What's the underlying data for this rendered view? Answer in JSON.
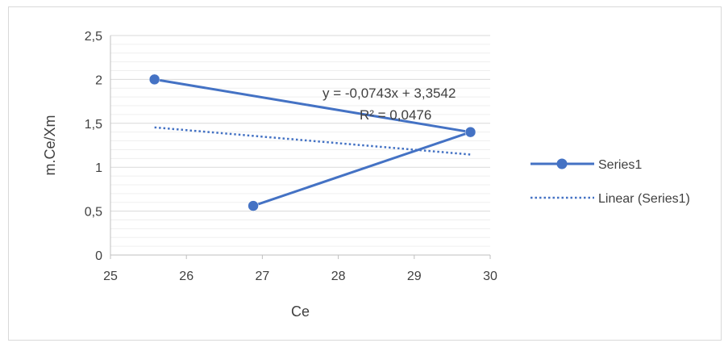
{
  "chart_data": {
    "type": "scatter",
    "title": "",
    "xlabel": "Ce",
    "ylabel": "m.Ce/Xm",
    "xlim": [
      25,
      30
    ],
    "ylim": [
      0,
      2.5
    ],
    "x_ticks": [
      "25",
      "26",
      "27",
      "28",
      "29",
      "30"
    ],
    "y_ticks": [
      "0",
      "0,5",
      "1",
      "1,5",
      "2",
      "2,5"
    ],
    "x_tick_values": [
      25,
      26,
      27,
      28,
      29,
      30
    ],
    "y_tick_values": [
      0,
      0.5,
      1,
      1.5,
      2,
      2.5
    ],
    "grid": true,
    "legend_position": "right",
    "series": [
      {
        "name": "Series1",
        "color": "#4472c4",
        "style": "solid-with-markers",
        "x": [
          25.58,
          29.74,
          26.88
        ],
        "y": [
          2.0,
          1.4,
          0.56
        ]
      }
    ],
    "trendline": {
      "name": "Linear (Series1)",
      "color": "#4472c4",
      "style": "dotted",
      "slope": -0.0743,
      "intercept": 3.3542,
      "x_range": [
        25.58,
        29.74
      ],
      "equation": "y = -0,0743x + 3,3542",
      "r_squared": "R² = 0,0476"
    }
  }
}
